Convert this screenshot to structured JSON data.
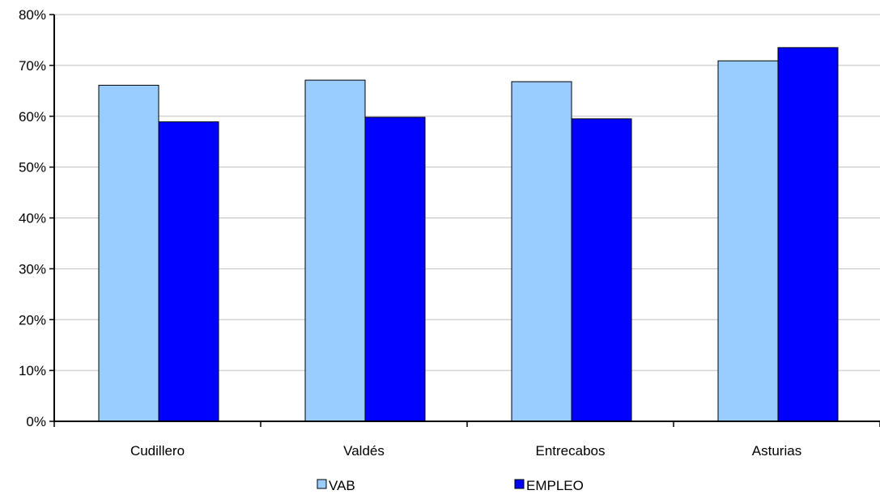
{
  "chart_data": {
    "type": "bar",
    "categories": [
      "Cudillero",
      "Valdés",
      "Entrecabos",
      "Asturias"
    ],
    "series": [
      {
        "name": "VAB",
        "values": [
          66.1,
          67.1,
          66.8,
          70.9
        ],
        "color": "#99ccff"
      },
      {
        "name": "EMPLEO",
        "values": [
          58.9,
          59.8,
          59.5,
          73.5
        ],
        "color": "#0000ff"
      }
    ],
    "ylim": [
      0,
      80
    ],
    "yticks": [
      0,
      10,
      20,
      30,
      40,
      50,
      60,
      70,
      80
    ],
    "ytick_labels": [
      "0%",
      "10%",
      "20%",
      "30%",
      "40%",
      "50%",
      "60%",
      "70%",
      "80%"
    ],
    "grid": true,
    "legend_position": "bottom",
    "title": "",
    "xlabel": "",
    "ylabel": ""
  }
}
